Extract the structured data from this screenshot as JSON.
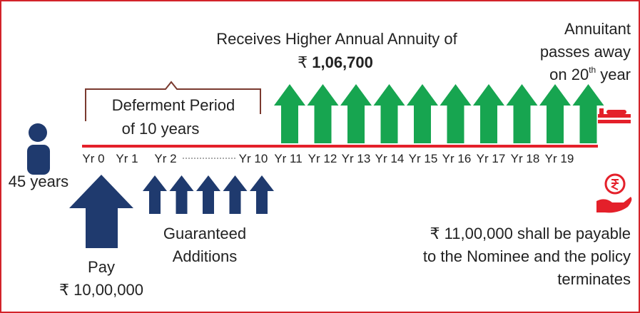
{
  "headline": {
    "lines": [
      "Receives Higher Annual Annuity of"
    ],
    "currency": "₹",
    "amount": "1,06,700"
  },
  "death_note": {
    "lines": [
      "Annuitant",
      "passes away"
    ],
    "prefix": "on 20",
    "sup": "th",
    "suffix": "year"
  },
  "deferment": {
    "lines": [
      "Deferment Period",
      "of  10 years"
    ]
  },
  "timeline": {
    "labels": [
      "Yr 0",
      "Yr 1",
      "Yr 2",
      "Yr 10",
      "Yr 11",
      "Yr 12",
      "Yr 13",
      "Yr 14",
      "Yr 15",
      "Yr 16",
      "Yr 17",
      "Yr 18",
      "Yr 19"
    ]
  },
  "age": "45 years",
  "additions": {
    "lines": [
      "Guaranteed",
      "Additions"
    ]
  },
  "payment": {
    "lines": [
      "Pay",
      "₹ 10,00,000"
    ]
  },
  "nominee": {
    "lines": [
      "₹ 11,00,000 shall be payable",
      "to the Nominee and the policy",
      "terminates"
    ]
  }
}
